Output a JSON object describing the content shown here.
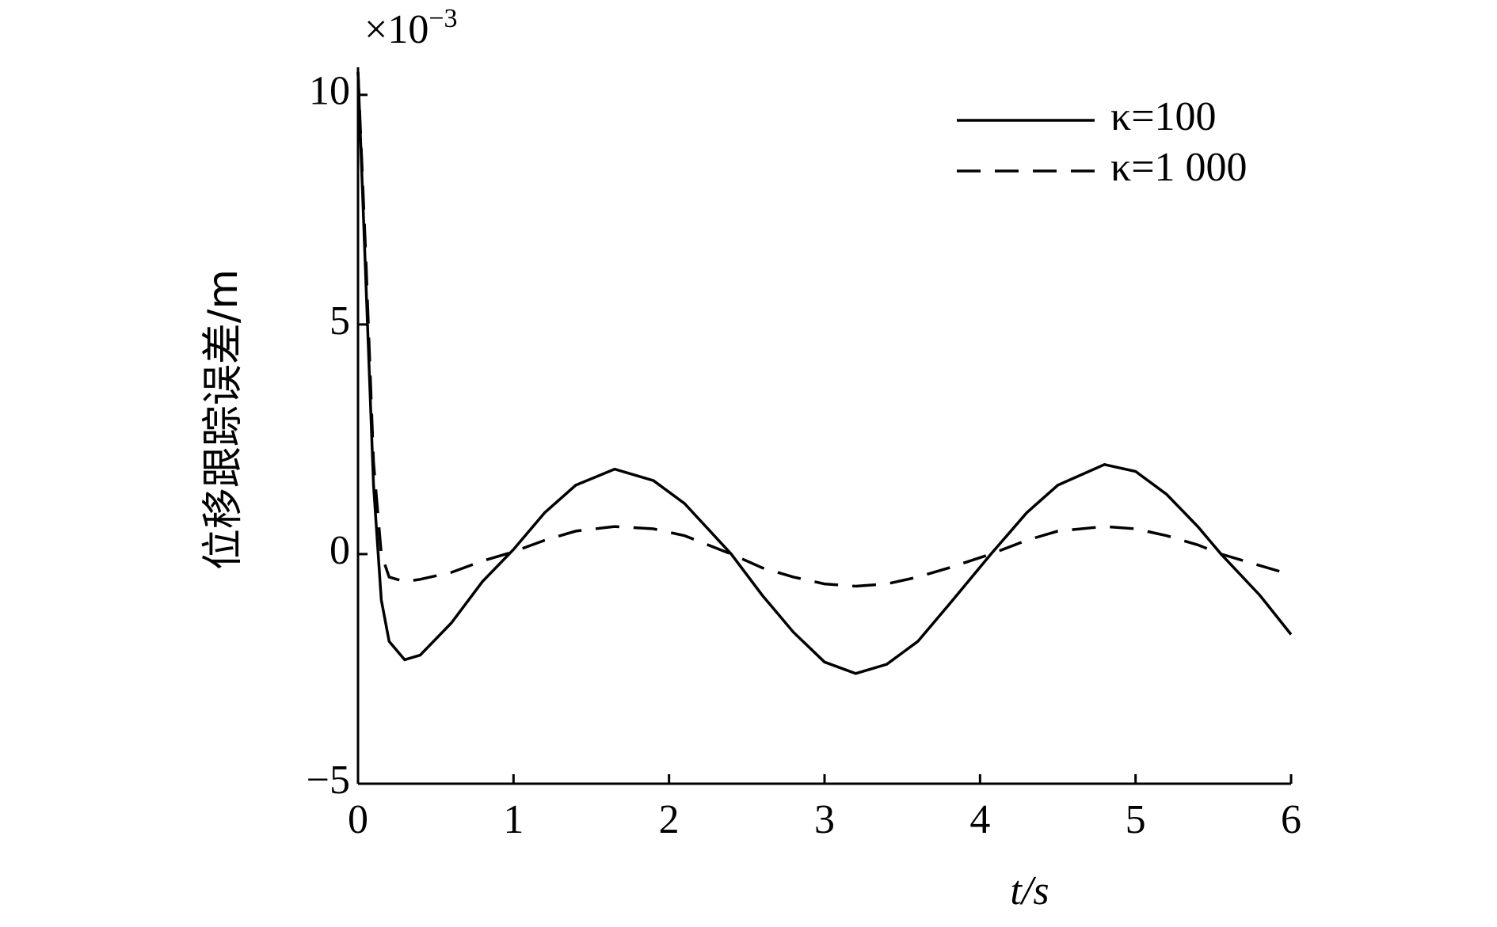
{
  "chart_data": {
    "type": "line",
    "x_label": "t/s",
    "y_label": "位移跟踪误差/m",
    "y_multiplier": {
      "base": "×10",
      "exponent": "−3"
    },
    "x": [
      0,
      0.05,
      0.1,
      0.15,
      0.2,
      0.3,
      0.4,
      0.6,
      0.8,
      1.0,
      1.2,
      1.4,
      1.65,
      1.9,
      2.1,
      2.4,
      2.6,
      2.8,
      3.0,
      3.2,
      3.4,
      3.6,
      3.8,
      4.07,
      4.3,
      4.5,
      4.8,
      5.0,
      5.2,
      5.4,
      5.55,
      5.8,
      6.0
    ],
    "series": [
      {
        "name": "κ=100",
        "color": "#000000",
        "dash": "solid",
        "values": [
          10.5,
          6,
          1.5,
          -1.0,
          -1.9,
          -2.3,
          -2.2,
          -1.5,
          -0.6,
          0.1,
          0.9,
          1.5,
          1.85,
          1.6,
          1.1,
          0,
          -0.9,
          -1.7,
          -2.35,
          -2.6,
          -2.4,
          -1.9,
          -1.1,
          0,
          0.9,
          1.5,
          1.95,
          1.8,
          1.3,
          0.6,
          0,
          -0.9,
          -1.75
        ]
      },
      {
        "name": "κ=1 000",
        "color": "#000000",
        "dash": "dashed",
        "values": [
          10.5,
          6.5,
          2,
          0,
          -0.5,
          -0.6,
          -0.55,
          -0.4,
          -0.15,
          0.05,
          0.3,
          0.5,
          0.6,
          0.55,
          0.4,
          0,
          -0.3,
          -0.5,
          -0.65,
          -0.7,
          -0.65,
          -0.5,
          -0.3,
          0,
          0.3,
          0.5,
          0.6,
          0.55,
          0.4,
          0.2,
          0,
          -0.25,
          -0.45
        ]
      }
    ],
    "xlim": [
      0,
      6
    ],
    "xticks": [
      0,
      1,
      2,
      3,
      4,
      5,
      6
    ],
    "ylim": [
      -5,
      10.6
    ],
    "yticks": [
      {
        "value": -5,
        "label": "−5"
      },
      0,
      5,
      10
    ],
    "grid": false,
    "legend": "upper right"
  }
}
